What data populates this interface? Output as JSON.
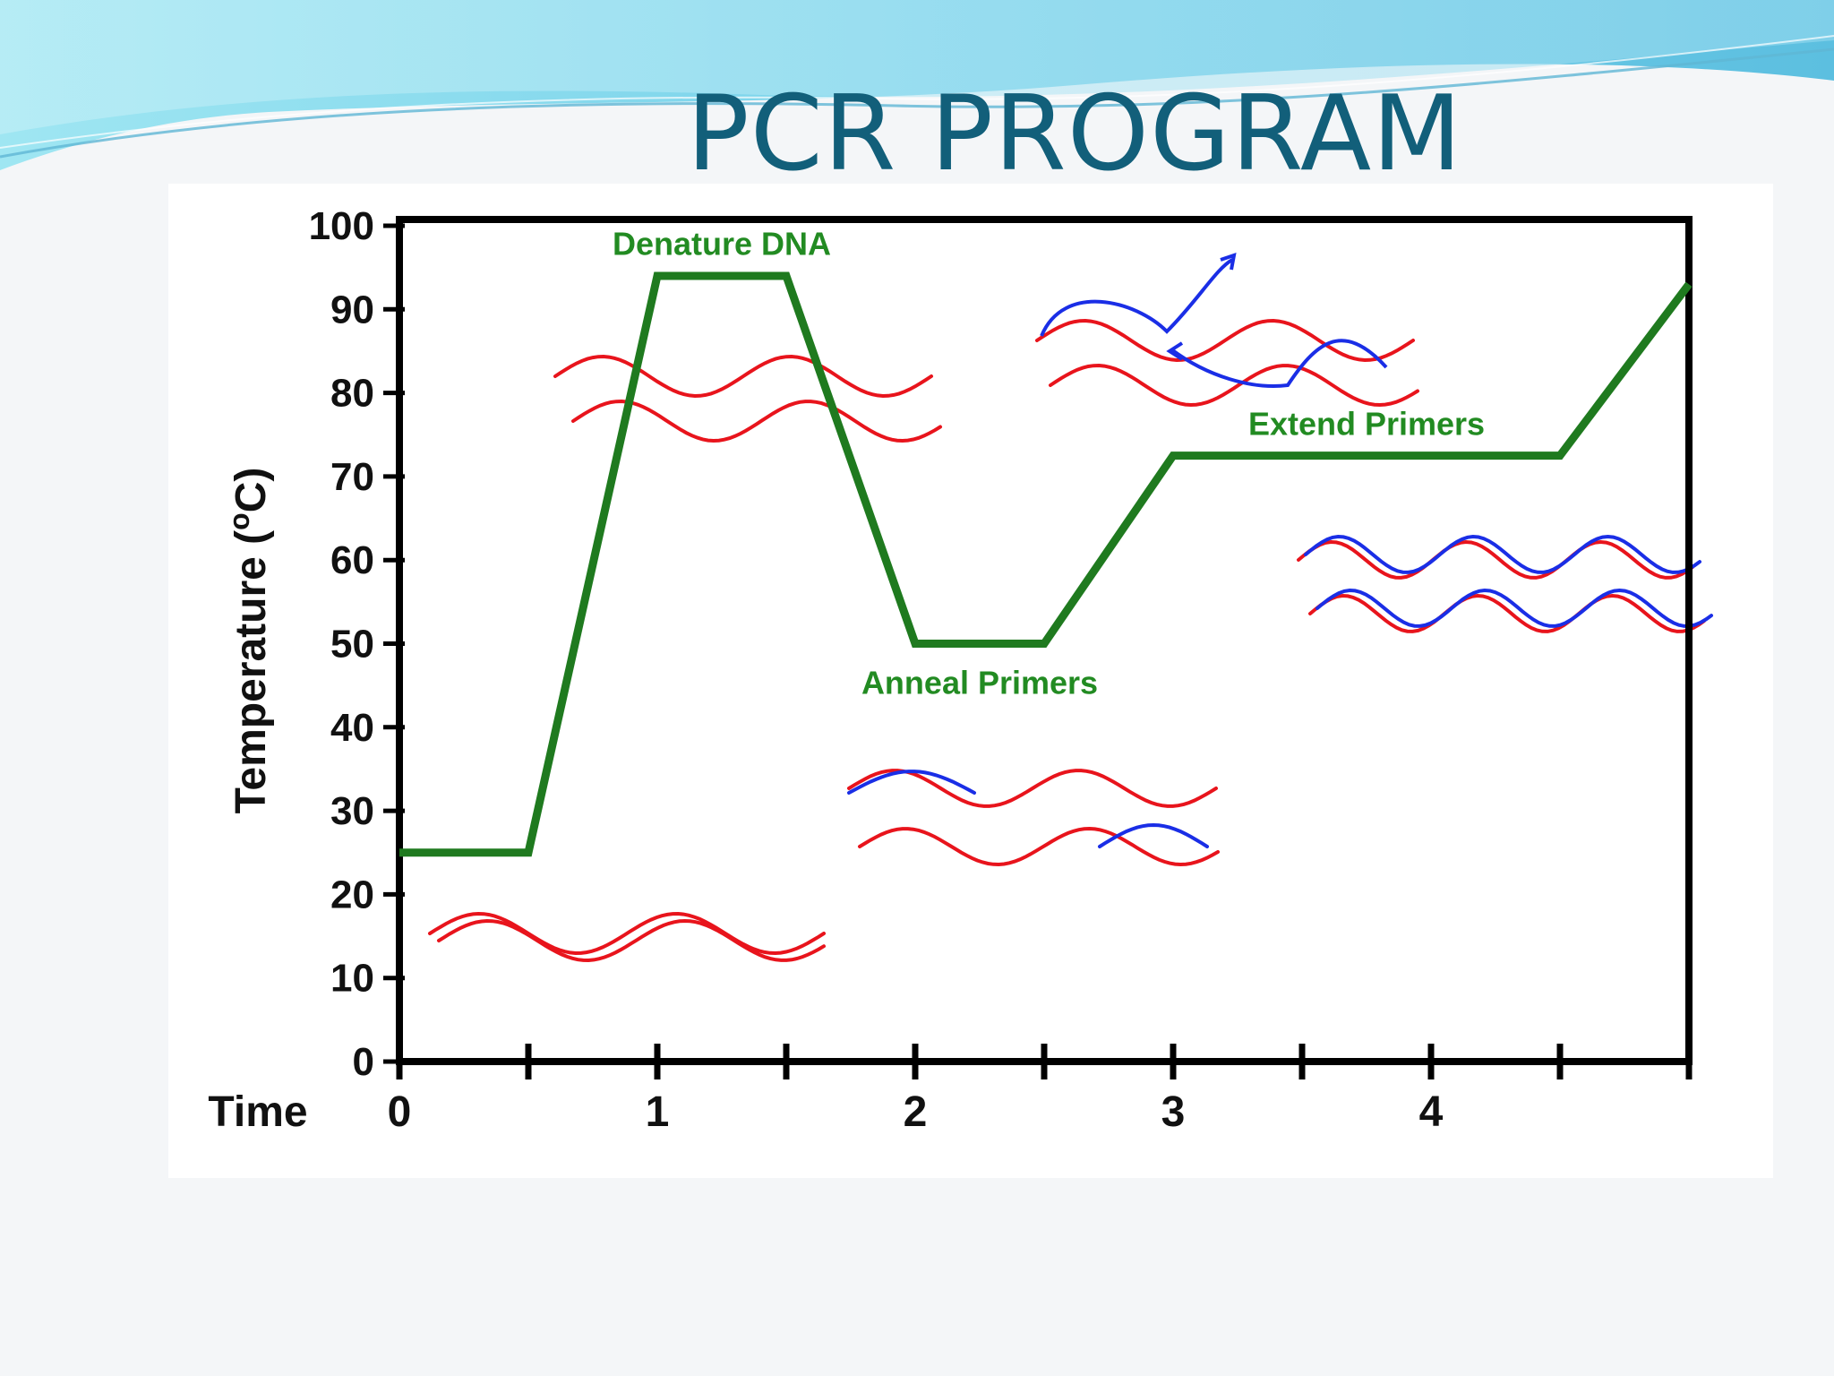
{
  "slide": {
    "title": "PCR PROGRAM"
  },
  "colors": {
    "title": "#125f7a",
    "temperature_line": "#1f7a1f",
    "phase_label": "#228b22",
    "template_dna": "#e8141c",
    "primer_dna": "#1a2ee6",
    "axes": "#000000"
  },
  "icons": [
    "red-dna-strand",
    "blue-primer-strand",
    "blue-arrow"
  ],
  "chart_data": {
    "type": "line",
    "title": "",
    "xlabel": "Time",
    "ylabel": "Temperature (°C)",
    "ylabel_parts": {
      "pre": "Temperature (",
      "sup": "o",
      "post": "C)"
    },
    "xlim": [
      0,
      5
    ],
    "ylim": [
      0,
      100
    ],
    "x_ticks": [
      0,
      0.5,
      1,
      1.5,
      2,
      2.5,
      3,
      3.5,
      4,
      4.5,
      5
    ],
    "x_tick_labels": [
      "0",
      "1",
      "2",
      "3",
      "4"
    ],
    "x_tick_label_values": [
      0,
      1,
      2,
      3,
      4
    ],
    "y_ticks": [
      0,
      10,
      20,
      30,
      40,
      50,
      60,
      70,
      80,
      90,
      100
    ],
    "y_tick_labels": [
      "0",
      "10",
      "20",
      "30",
      "40",
      "50",
      "60",
      "70",
      "80",
      "90",
      "100"
    ],
    "grid": false,
    "legend": "none",
    "series": [
      {
        "x": [
          0,
          0.5,
          1,
          1.5,
          2,
          2.5,
          3,
          4.5,
          5
        ],
        "y": [
          25,
          25,
          94,
          94,
          50,
          50,
          72.5,
          72.5,
          93
        ]
      }
    ],
    "annotations": [
      {
        "text": "Denature DNA",
        "x": 1.25,
        "y": 96.5
      },
      {
        "text": "Anneal Primers",
        "x": 2.25,
        "y": 44
      },
      {
        "text": "Extend Primers",
        "x": 3.75,
        "y": 75
      }
    ]
  }
}
